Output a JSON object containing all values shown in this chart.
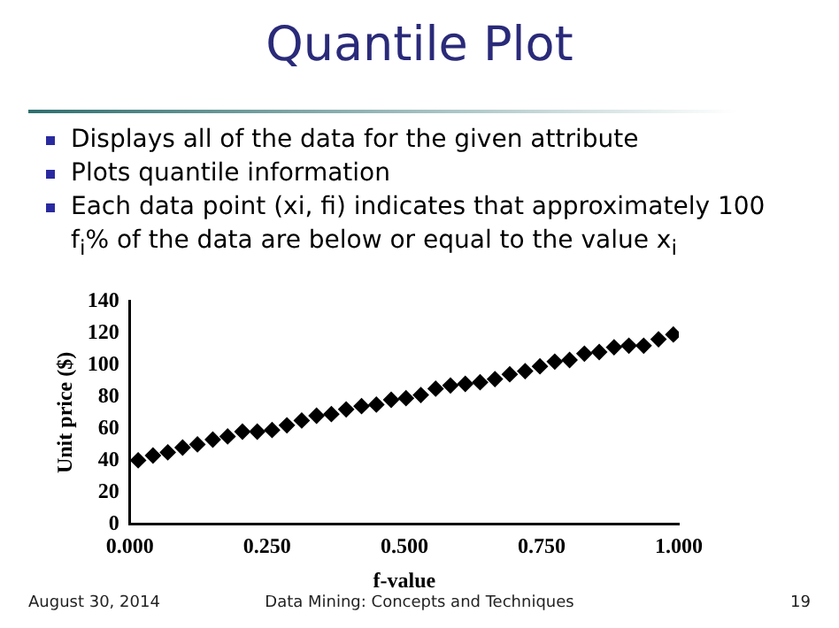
{
  "chart_data": {
    "type": "scatter",
    "title": "Quantile Plot",
    "xlabel": "f-value",
    "ylabel": "Unit price ($)",
    "annotations": [
      "Displays all of the data for the given attribute",
      "Plots quantile information",
      "Each data point (xi, fi) indicates that approximately 100 f$_{i}$% of the data are below or equal to the value x$_{i}$",
      "August 30, 2014",
      "Data Mining: Concepts and Techniques",
      "19"
    ],
    "x": [
      0.015,
      0.042,
      0.069,
      0.096,
      0.123,
      0.151,
      0.178,
      0.205,
      0.232,
      0.259,
      0.286,
      0.313,
      0.34,
      0.367,
      0.394,
      0.422,
      0.449,
      0.476,
      0.503,
      0.53,
      0.557,
      0.584,
      0.611,
      0.638,
      0.665,
      0.692,
      0.72,
      0.747,
      0.774,
      0.801,
      0.828,
      0.855,
      0.882,
      0.909,
      0.936,
      0.963,
      0.99
    ],
    "series": [
      {
        "color": "#000000",
        "values": [
          40,
          43,
          45,
          48,
          50,
          53,
          55,
          58,
          58,
          59,
          62,
          65,
          68,
          69,
          72,
          74,
          75,
          78,
          79,
          81,
          85,
          87,
          88,
          89,
          91,
          94,
          96,
          99,
          102,
          103,
          107,
          108,
          111,
          112,
          112,
          116,
          119
        ]
      }
    ],
    "xlim": [
      0,
      1
    ],
    "xticks": [
      {
        "value": 0,
        "label": "0.000"
      },
      {
        "value": 0.25,
        "label": "0.250"
      },
      {
        "value": 0.5,
        "label": "0.500"
      },
      {
        "value": 0.75,
        "label": "0.750"
      },
      {
        "value": 1,
        "label": "1.000"
      }
    ],
    "ylim": [
      0,
      140
    ],
    "yticks": [
      0,
      20,
      40,
      60,
      80,
      100,
      120,
      140
    ],
    "grid": false,
    "legend": false,
    "marker": "diamond"
  }
}
